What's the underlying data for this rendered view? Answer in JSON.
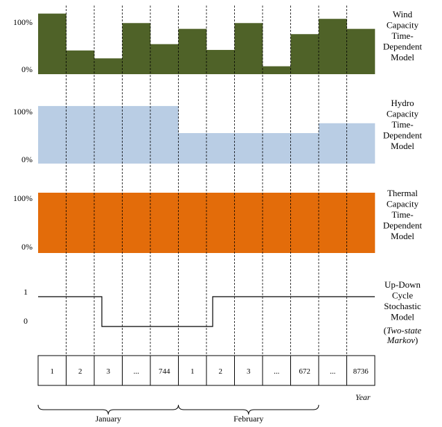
{
  "panels": [
    {
      "key": "wind",
      "color": "#4f6228",
      "ytick_top": "100%",
      "ytick_bottom": "0%",
      "label_lines": [
        "Wind",
        "Capacity",
        "Time-",
        "Dependent",
        "Model"
      ],
      "levels": [
        1.15,
        0.45,
        0.3,
        0.97,
        0.57,
        0.86,
        0.46,
        0.97,
        0.15,
        0.76,
        1.05,
        0.86
      ]
    },
    {
      "key": "hydro",
      "color": "#b9cde4",
      "ytick_top": "100%",
      "ytick_bottom": "0%",
      "label_lines": [
        "Hydro",
        "Capacity",
        "Time-",
        "Dependent",
        "Model"
      ],
      "levels": [
        1.17,
        1.17,
        1.17,
        1.17,
        1.17,
        0.62,
        0.62,
        0.62,
        0.62,
        0.62,
        0.82,
        0.82
      ]
    },
    {
      "key": "thermal",
      "color": "#e36c0a",
      "ytick_top": "100%",
      "ytick_bottom": "0%",
      "label_lines": [
        "Thermal",
        "Capacity",
        "Time-",
        "Dependent",
        "Model"
      ],
      "levels": [
        1,
        1,
        1,
        1,
        1,
        1,
        1,
        1,
        1,
        1,
        1,
        1
      ]
    }
  ],
  "updown": {
    "ytick_top": "1",
    "ytick_bottom": "0",
    "label_lines": [
      "Up-Down",
      "Cycle",
      "Stochastic",
      "Model"
    ],
    "label_note_lines": [
      "(Two-state",
      "Markov)"
    ],
    "states": [
      1,
      1,
      0,
      0,
      0,
      0,
      1,
      1,
      1,
      1,
      1,
      1
    ]
  },
  "timeline": {
    "cells": [
      "1",
      "2",
      "3",
      "...",
      "744",
      "1",
      "2",
      "3",
      "...",
      "672",
      "...",
      "8736"
    ],
    "axis_label": "Year",
    "months": [
      {
        "name": "January",
        "start": 0,
        "end": 5
      },
      {
        "name": "February",
        "start": 5,
        "end": 10
      }
    ]
  }
}
